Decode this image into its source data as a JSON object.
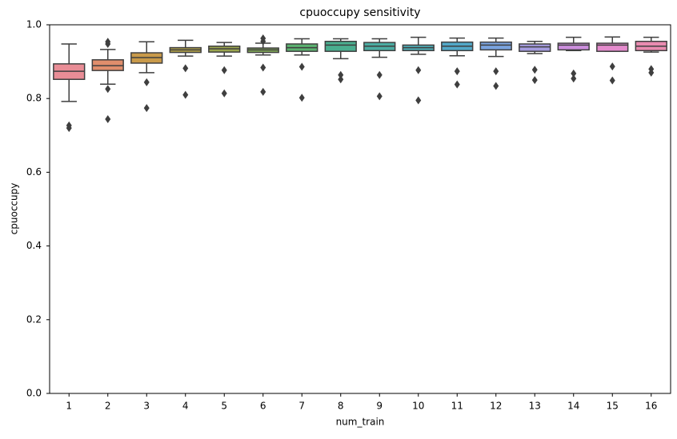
{
  "chart_data": {
    "type": "box",
    "title": "cpuoccupy sensitivity",
    "xlabel": "num_train",
    "ylabel": "cpuoccupy",
    "categories": [
      "1",
      "2",
      "3",
      "4",
      "5",
      "6",
      "7",
      "8",
      "9",
      "10",
      "11",
      "12",
      "13",
      "14",
      "15",
      "16"
    ],
    "ylim": [
      0,
      1
    ],
    "yticks": [
      {
        "value": 0,
        "label": "0.0"
      },
      0.2,
      0.4,
      0.6,
      0.8,
      {
        "value": 1,
        "label": "1.0"
      }
    ],
    "grid": false,
    "boxes": [
      {
        "color": "#e98d96",
        "low": 0.792,
        "q1": 0.852,
        "median": 0.874,
        "q3": 0.894,
        "high": 0.948,
        "outliers": [
          0.727,
          0.72
        ]
      },
      {
        "color": "#e08e6c",
        "low": 0.839,
        "q1": 0.876,
        "median": 0.889,
        "q3": 0.905,
        "high": 0.933,
        "outliers": [
          0.954,
          0.948,
          0.826,
          0.744
        ]
      },
      {
        "color": "#c99a4a",
        "low": 0.87,
        "q1": 0.896,
        "median": 0.911,
        "q3": 0.924,
        "high": 0.954,
        "outliers": [
          0.844,
          0.774
        ]
      },
      {
        "color": "#b0a04a",
        "low": 0.915,
        "q1": 0.925,
        "median": 0.932,
        "q3": 0.938,
        "high": 0.958,
        "outliers": [
          0.882,
          0.81
        ]
      },
      {
        "color": "#9aa54f",
        "low": 0.915,
        "q1": 0.926,
        "median": 0.935,
        "q3": 0.942,
        "high": 0.952,
        "outliers": [
          0.877,
          0.814
        ]
      },
      {
        "color": "#82a958",
        "low": 0.918,
        "q1": 0.925,
        "median": 0.932,
        "q3": 0.937,
        "high": 0.95,
        "outliers": [
          0.963,
          0.955,
          0.884,
          0.818
        ]
      },
      {
        "color": "#5cb270",
        "low": 0.918,
        "q1": 0.928,
        "median": 0.938,
        "q3": 0.948,
        "high": 0.962,
        "outliers": [
          0.886,
          0.802
        ]
      },
      {
        "color": "#4aae8f",
        "low": 0.908,
        "q1": 0.928,
        "median": 0.945,
        "q3": 0.955,
        "high": 0.962,
        "outliers": [
          0.864,
          0.852
        ]
      },
      {
        "color": "#4baca2",
        "low": 0.912,
        "q1": 0.93,
        "median": 0.942,
        "q3": 0.952,
        "high": 0.962,
        "outliers": [
          0.864,
          0.806
        ]
      },
      {
        "color": "#4dabb4",
        "low": 0.92,
        "q1": 0.93,
        "median": 0.938,
        "q3": 0.945,
        "high": 0.966,
        "outliers": [
          0.877,
          0.795
        ]
      },
      {
        "color": "#52a8c8",
        "low": 0.916,
        "q1": 0.93,
        "median": 0.942,
        "q3": 0.953,
        "high": 0.964,
        "outliers": [
          0.874,
          0.838
        ]
      },
      {
        "color": "#7aa3de",
        "low": 0.914,
        "q1": 0.932,
        "median": 0.945,
        "q3": 0.953,
        "high": 0.964,
        "outliers": [
          0.874,
          0.834
        ]
      },
      {
        "color": "#a59ce0",
        "low": 0.922,
        "q1": 0.928,
        "median": 0.94,
        "q3": 0.948,
        "high": 0.955,
        "outliers": [
          0.878,
          0.85
        ]
      },
      {
        "color": "#cd8fde",
        "low": 0.93,
        "q1": 0.932,
        "median": 0.945,
        "q3": 0.95,
        "high": 0.966,
        "outliers": [
          0.868,
          0.854
        ]
      },
      {
        "color": "#e58bcd",
        "low": 0.928,
        "q1": 0.928,
        "median": 0.945,
        "q3": 0.95,
        "high": 0.967,
        "outliers": [
          0.887,
          0.849
        ]
      },
      {
        "color": "#e98bb0",
        "low": 0.926,
        "q1": 0.93,
        "median": 0.942,
        "q3": 0.955,
        "high": 0.966,
        "outliers": [
          0.88,
          0.87
        ]
      }
    ]
  }
}
